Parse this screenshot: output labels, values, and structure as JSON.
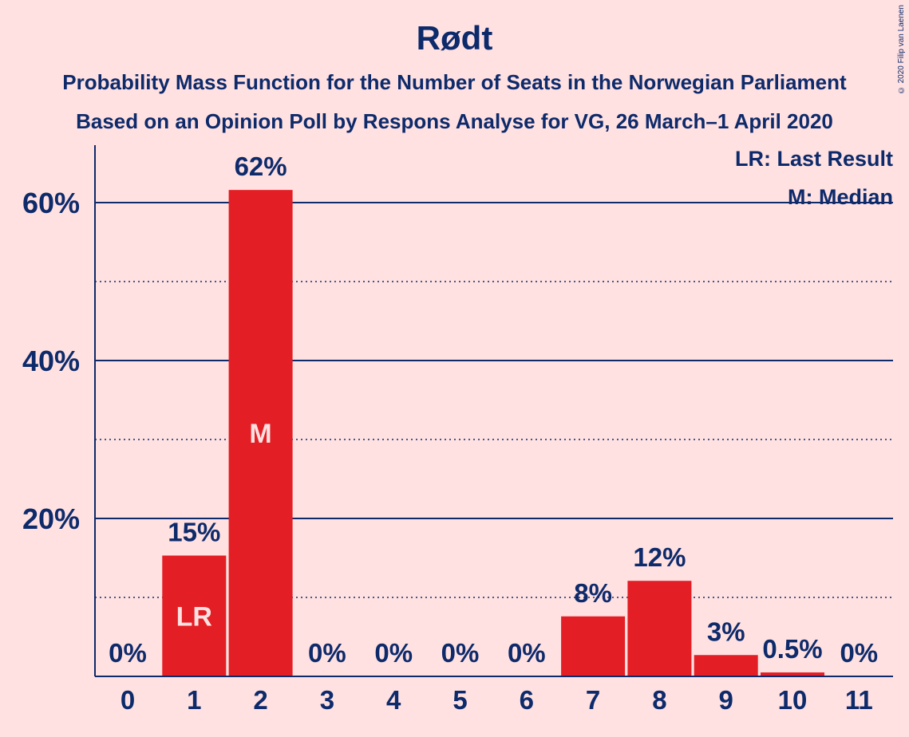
{
  "chart_data": {
    "type": "bar",
    "title": "Rødt",
    "subtitle_lines": [
      "Probability Mass Function for the Number of Seats in the Norwegian Parliament",
      "Based on an Opinion Poll by Respons Analyse for VG, 26 March–1 April 2020"
    ],
    "categories": [
      "0",
      "1",
      "2",
      "3",
      "4",
      "5",
      "6",
      "7",
      "8",
      "9",
      "10",
      "11"
    ],
    "values": [
      0,
      15.3,
      61.6,
      0,
      0,
      0,
      0,
      7.6,
      12.1,
      2.7,
      0.5,
      0
    ],
    "data_labels": [
      "0%",
      "15%",
      "62%",
      "0%",
      "0%",
      "0%",
      "0%",
      "8%",
      "12%",
      "3%",
      "0.5%",
      "0%"
    ],
    "bar_markers": [
      {
        "category": "1",
        "text": "LR"
      },
      {
        "category": "2",
        "text": "M"
      }
    ],
    "y_ticks": [
      20,
      40,
      60
    ],
    "y_tick_labels": [
      "20%",
      "40%",
      "60%"
    ],
    "minor_gridlines": [
      10,
      30,
      50
    ],
    "ylim": [
      0,
      67
    ],
    "legend": [
      "LR: Last Result",
      "M: Median"
    ],
    "legend_position": "top-right",
    "colors": {
      "bar": "#e31e24",
      "text": "#0d2a6b",
      "background": "#ffe1e1",
      "marker_text": "#ffe1e1"
    }
  },
  "copyright": "© 2020 Filip van Laenen"
}
